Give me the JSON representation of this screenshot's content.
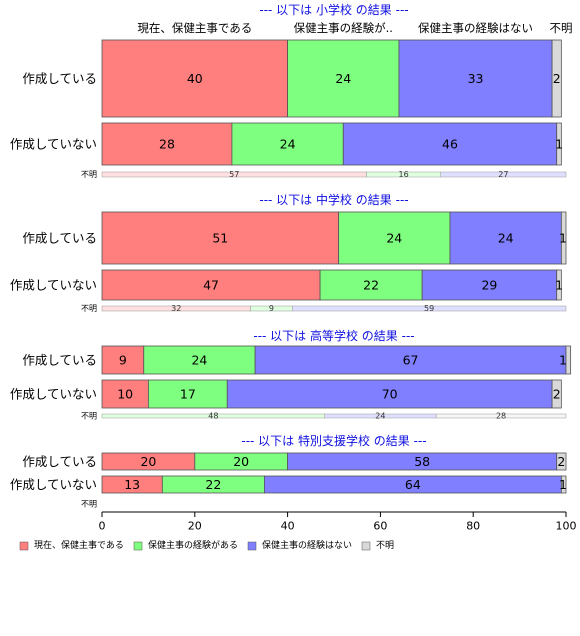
{
  "chart_data": {
    "type": "bar",
    "orientation": "horizontal",
    "stacked": true,
    "xlim": [
      0,
      100
    ],
    "x_ticks": [
      0,
      20,
      40,
      60,
      80,
      100
    ],
    "column_headers": [
      "現在、保健主事である",
      "保健主事の経験が..",
      "保健主事の経験はない",
      "不明"
    ],
    "legend": {
      "placement": "bottom-left",
      "entries": [
        "現在、保健主事である",
        "保健主事の経験がある",
        "保健主事の経験はない",
        "不明"
      ]
    },
    "colors": [
      "#ff7f7f",
      "#7fff7f",
      "#7f7fff",
      "#d9d9d9"
    ],
    "panels": [
      {
        "title": "--- 以下は 小学校 の結果 ---",
        "rows": [
          {
            "label": "作成している",
            "values": [
              40,
              24,
              33,
              2
            ]
          },
          {
            "label": "作成していない",
            "values": [
              28,
              24,
              46,
              1
            ]
          }
        ],
        "unknown": {
          "label": "不明",
          "values": [
            57,
            16,
            27
          ]
        }
      },
      {
        "title": "--- 以下は 中学校 の結果 ---",
        "rows": [
          {
            "label": "作成している",
            "values": [
              51,
              24,
              24,
              1
            ]
          },
          {
            "label": "作成していない",
            "values": [
              47,
              22,
              29,
              1
            ]
          }
        ],
        "unknown": {
          "label": "不明",
          "values": [
            32,
            9,
            59
          ]
        }
      },
      {
        "title": "--- 以下は 高等学校 の結果 ---",
        "rows": [
          {
            "label": "作成している",
            "values": [
              9,
              24,
              67,
              1
            ]
          },
          {
            "label": "作成していない",
            "values": [
              10,
              17,
              70,
              2
            ]
          }
        ],
        "unknown": {
          "label": "不明",
          "values": [
            0,
            48,
            24,
            28
          ]
        }
      },
      {
        "title": "--- 以下は 特別支援学校 の結果 ---",
        "rows": [
          {
            "label": "作成している",
            "values": [
              20,
              20,
              58,
              2
            ]
          },
          {
            "label": "作成していない",
            "values": [
              13,
              22,
              64,
              1
            ]
          }
        ],
        "unknown": {
          "label": "不明",
          "values": []
        }
      }
    ]
  }
}
